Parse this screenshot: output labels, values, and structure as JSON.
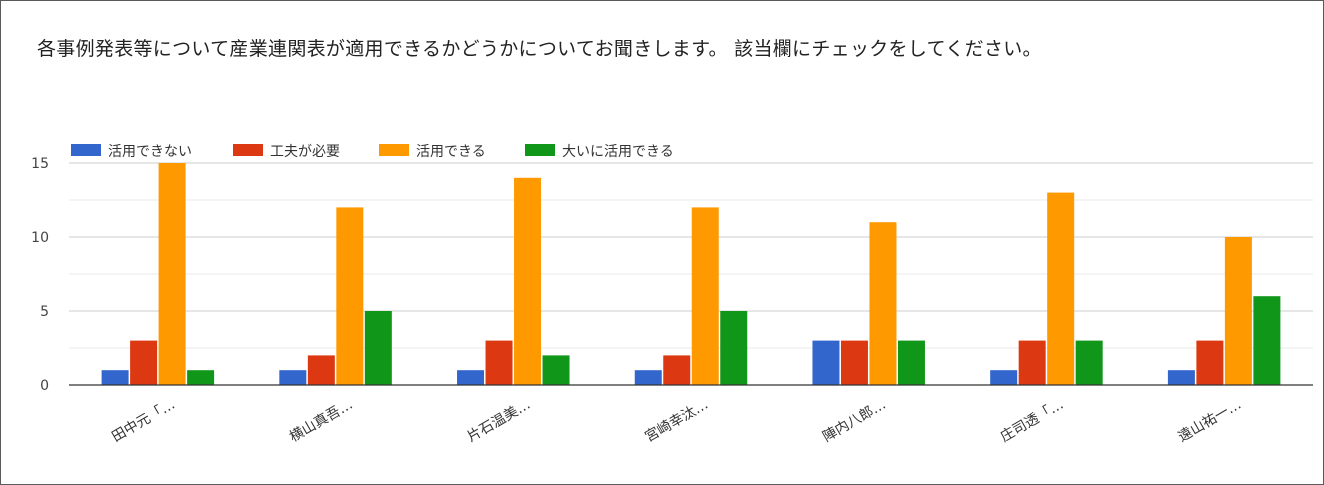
{
  "question": "各事例発表等について産業連関表が適用できるかどうかについてお聞きします。 該当欄にチェックをしてください。",
  "chart_data": {
    "type": "bar",
    "title": "",
    "xlabel": "",
    "ylabel": "",
    "ylim": [
      0,
      15
    ],
    "yticks": [
      0,
      5,
      10,
      15
    ],
    "grid": true,
    "legend_position": "top-left",
    "categories": [
      "田中元「…",
      "横山真吾…",
      "片石温美…",
      "宮崎幸汰…",
      "陣内八郎…",
      "庄司透「…",
      "遠山祐一…"
    ],
    "series": [
      {
        "name": "活用できない",
        "color": "#3366cc",
        "values": [
          1,
          1,
          1,
          1,
          3,
          1,
          1
        ]
      },
      {
        "name": "工夫が必要",
        "color": "#dc3912",
        "values": [
          3,
          2,
          3,
          2,
          3,
          3,
          3
        ]
      },
      {
        "name": "活用できる",
        "color": "#ff9900",
        "values": [
          15,
          12,
          14,
          12,
          11,
          13,
          10
        ]
      },
      {
        "name": "大いに活用できる",
        "color": "#109618",
        "values": [
          1,
          5,
          2,
          5,
          3,
          3,
          6
        ]
      }
    ]
  }
}
